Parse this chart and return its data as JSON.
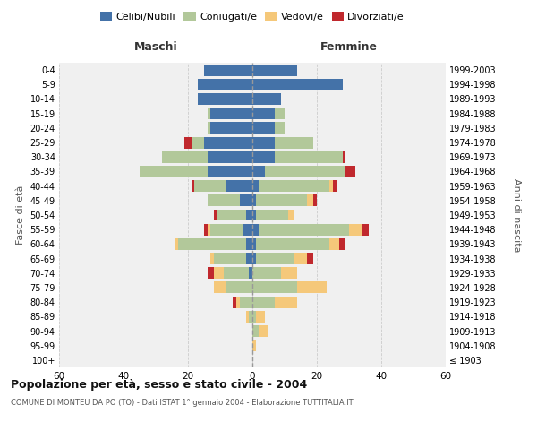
{
  "age_groups": [
    "100+",
    "95-99",
    "90-94",
    "85-89",
    "80-84",
    "75-79",
    "70-74",
    "65-69",
    "60-64",
    "55-59",
    "50-54",
    "45-49",
    "40-44",
    "35-39",
    "30-34",
    "25-29",
    "20-24",
    "15-19",
    "10-14",
    "5-9",
    "0-4"
  ],
  "birth_years": [
    "≤ 1903",
    "1904-1908",
    "1909-1913",
    "1914-1918",
    "1919-1923",
    "1924-1928",
    "1929-1933",
    "1934-1938",
    "1939-1943",
    "1944-1948",
    "1949-1953",
    "1954-1958",
    "1959-1963",
    "1964-1968",
    "1969-1973",
    "1974-1978",
    "1979-1983",
    "1984-1988",
    "1989-1993",
    "1994-1998",
    "1999-2003"
  ],
  "maschi": {
    "celibi": [
      0,
      0,
      0,
      0,
      0,
      0,
      1,
      2,
      2,
      3,
      2,
      4,
      8,
      14,
      14,
      15,
      13,
      13,
      17,
      17,
      15
    ],
    "coniugati": [
      0,
      0,
      0,
      1,
      4,
      8,
      8,
      10,
      21,
      10,
      9,
      10,
      10,
      21,
      14,
      4,
      1,
      1,
      0,
      0,
      0
    ],
    "vedovi": [
      0,
      0,
      0,
      1,
      1,
      4,
      3,
      1,
      1,
      1,
      0,
      0,
      0,
      0,
      0,
      0,
      0,
      0,
      0,
      0,
      0
    ],
    "divorziati": [
      0,
      0,
      0,
      0,
      1,
      0,
      2,
      0,
      0,
      1,
      1,
      0,
      1,
      0,
      0,
      2,
      0,
      0,
      0,
      0,
      0
    ]
  },
  "femmine": {
    "nubili": [
      0,
      0,
      0,
      0,
      0,
      0,
      0,
      1,
      1,
      2,
      1,
      1,
      2,
      4,
      7,
      7,
      7,
      7,
      9,
      28,
      14
    ],
    "coniugate": [
      0,
      0,
      2,
      1,
      7,
      14,
      9,
      12,
      23,
      28,
      10,
      16,
      22,
      25,
      21,
      12,
      3,
      3,
      0,
      0,
      0
    ],
    "vedove": [
      0,
      1,
      3,
      3,
      7,
      9,
      5,
      4,
      3,
      4,
      2,
      2,
      1,
      0,
      0,
      0,
      0,
      0,
      0,
      0,
      0
    ],
    "divorziate": [
      0,
      0,
      0,
      0,
      0,
      0,
      0,
      2,
      2,
      2,
      0,
      1,
      1,
      3,
      1,
      0,
      0,
      0,
      0,
      0,
      0
    ]
  },
  "colors": {
    "celibi": "#4472a8",
    "coniugati": "#b2c89a",
    "vedovi": "#f5c87a",
    "divorziati": "#c0282d"
  },
  "xlim": 60,
  "title": "Popolazione per età, sesso e stato civile - 2004",
  "subtitle": "COMUNE DI MONTEU DA PO (TO) - Dati ISTAT 1° gennaio 2004 - Elaborazione TUTTITALIA.IT",
  "ylabel_left": "Fasce di età",
  "ylabel_right": "Anni di nascita",
  "xlabel_maschi": "Maschi",
  "xlabel_femmine": "Femmine",
  "legend_labels": [
    "Celibi/Nubili",
    "Coniugati/e",
    "Vedovi/e",
    "Divorziati/e"
  ],
  "bg_color": "#f0f0f0",
  "grid_color": "#cccccc"
}
